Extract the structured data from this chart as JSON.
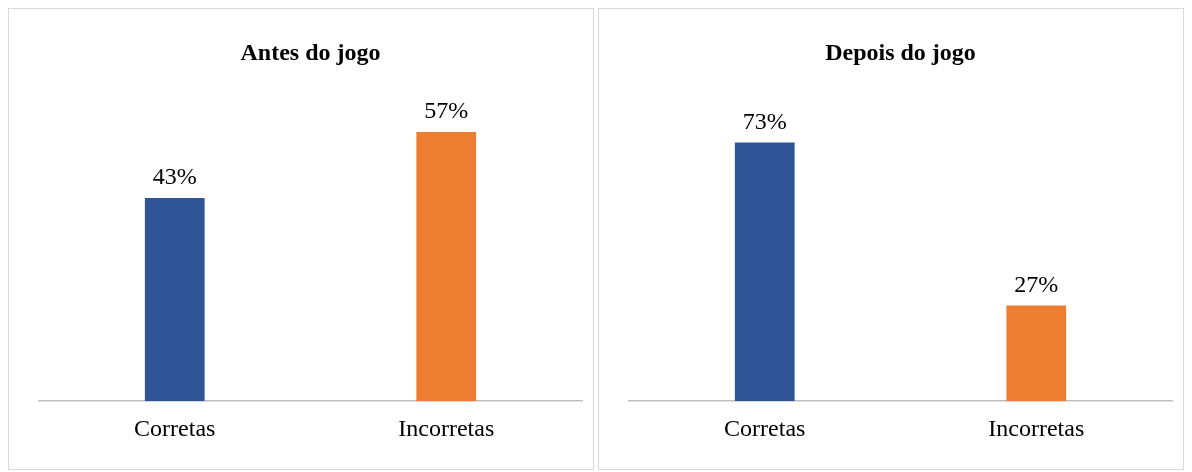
{
  "chart_data": [
    {
      "type": "bar",
      "title": "Antes do jogo",
      "categories": [
        "Corretas",
        "Incorretas"
      ],
      "values": [
        43,
        57
      ],
      "colors": [
        "#2f5597",
        "#ed7d31"
      ],
      "value_labels": [
        "43%",
        "57%"
      ]
    },
    {
      "type": "bar",
      "title": "Depois do jogo",
      "categories": [
        "Corretas",
        "Incorretas"
      ],
      "values": [
        73,
        27
      ],
      "colors": [
        "#2f5597",
        "#ed7d31"
      ],
      "value_labels": [
        "73%",
        "27%"
      ]
    }
  ]
}
